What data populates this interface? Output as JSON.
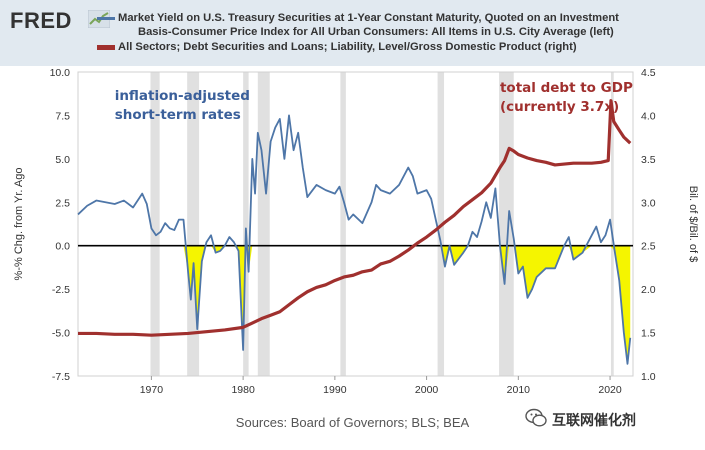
{
  "header": {
    "logo_text": "FRED",
    "series1_line1": "Market Yield on U.S. Treasury Securities at 1-Year Constant Maturity, Quoted on an Investment",
    "series1_line2": "Basis-Consumer Price Index for All Urban Consumers: All Items in U.S. City Average (left)",
    "series2_line1": "All Sectors; Debt Securities and Loans; Liability, Level/Gross Domestic Product (right)"
  },
  "footer": {
    "sources": "Sources: Board of Governors; BLS; BEA",
    "watermark": "互联网催化剂"
  },
  "chart_data": {
    "type": "line",
    "left_axis": {
      "label": "%-% Chg. from Yr. Ago",
      "range": [
        -7.5,
        10.0
      ],
      "ticks": [
        "10.0",
        "7.5",
        "5.0",
        "2.5",
        "0.0",
        "-2.5",
        "-5.0",
        "-7.5"
      ]
    },
    "right_axis": {
      "label": "Bil. of $/Bil. of $",
      "range": [
        1.0,
        4.5
      ],
      "ticks": [
        "4.5",
        "4.0",
        "3.5",
        "3.0",
        "2.5",
        "2.0",
        "1.5",
        "1.0"
      ]
    },
    "x_axis": {
      "range": [
        1962,
        2022.5
      ],
      "ticks": [
        "1970",
        "1980",
        "1990",
        "2000",
        "2010",
        "2020"
      ]
    },
    "recessions": [
      [
        1969.9,
        1970.9
      ],
      [
        1973.9,
        1975.2
      ],
      [
        1980.0,
        1980.6
      ],
      [
        1981.6,
        1982.9
      ],
      [
        1990.6,
        1991.2
      ],
      [
        2001.2,
        2001.9
      ],
      [
        2007.9,
        2009.5
      ],
      [
        2020.1,
        2020.4
      ]
    ],
    "annotations": [
      {
        "text_lines": [
          "inflation-adjusted",
          "short-term rates"
        ],
        "color": "#3a5f9a",
        "x": 1966,
        "y": 8.4
      },
      {
        "text_lines": [
          "total debt to GDP",
          "(currently 3.7x)"
        ],
        "color": "#a0302e",
        "x": 2008,
        "y": 4.27
      }
    ],
    "series": [
      {
        "name": "Market Yield on U.S. Treasury Securities at 1-Year Constant Maturity, Quoted on an Investment Basis-Consumer Price Index for All Urban Consumers: All Items in U.S. City Average (left)",
        "color": "#4e76a8",
        "axis": "left",
        "x": [
          1962,
          1963,
          1964,
          1965,
          1966,
          1967,
          1968,
          1969,
          1969.5,
          1970,
          1970.5,
          1971,
          1971.5,
          1972,
          1972.5,
          1973,
          1973.5,
          1974,
          1974.3,
          1974.6,
          1975,
          1975.5,
          1976,
          1976.5,
          1977,
          1977.5,
          1978,
          1978.5,
          1979,
          1979.5,
          1980,
          1980.3,
          1980.6,
          1981,
          1981.3,
          1981.6,
          1982,
          1982.5,
          1983,
          1983.5,
          1984,
          1984.5,
          1985,
          1985.5,
          1986,
          1986.5,
          1987,
          1988,
          1989,
          1990,
          1990.5,
          1991,
          1991.5,
          1992,
          1993,
          1994,
          1994.5,
          1995,
          1996,
          1997,
          1998,
          1998.5,
          1999,
          2000,
          2000.5,
          2001,
          2001.5,
          2002,
          2002.5,
          2003,
          2004,
          2004.5,
          2005,
          2005.5,
          2006,
          2006.5,
          2007,
          2007.5,
          2008,
          2008.5,
          2009,
          2009.5,
          2010,
          2010.5,
          2011,
          2011.5,
          2012,
          2013,
          2014,
          2015,
          2015.5,
          2016,
          2017,
          2018,
          2018.5,
          2019,
          2019.5,
          2020,
          2020.5,
          2021,
          2021.5,
          2021.9,
          2022.2
        ],
        "y": [
          1.8,
          2.3,
          2.6,
          2.5,
          2.4,
          2.6,
          2.2,
          3.0,
          2.4,
          1.0,
          0.6,
          0.8,
          1.3,
          1.0,
          0.9,
          1.5,
          1.5,
          -1.5,
          -3.1,
          -1.0,
          -4.8,
          -0.9,
          0.2,
          0.6,
          -0.4,
          -0.3,
          0.0,
          0.5,
          0.2,
          -0.3,
          -6.0,
          1.0,
          -1.5,
          5.0,
          3.0,
          6.5,
          5.5,
          3.0,
          6.0,
          6.8,
          7.3,
          5.0,
          7.5,
          5.5,
          6.5,
          4.5,
          2.8,
          3.5,
          3.2,
          3.0,
          3.4,
          2.5,
          1.5,
          1.8,
          1.3,
          2.5,
          3.5,
          3.2,
          3.0,
          3.5,
          4.5,
          4.0,
          3.0,
          3.2,
          2.7,
          1.5,
          0.3,
          -1.2,
          0.0,
          -1.1,
          -0.4,
          0.0,
          0.8,
          0.5,
          1.4,
          2.5,
          1.6,
          3.3,
          0.0,
          -2.2,
          2.0,
          0.4,
          -1.6,
          -1.2,
          -3.0,
          -2.5,
          -1.8,
          -1.3,
          -1.3,
          0.0,
          0.5,
          -0.8,
          -0.4,
          0.6,
          1.1,
          0.2,
          0.6,
          1.5,
          -0.3,
          -2.0,
          -5.0,
          -6.8,
          -5.3
        ]
      },
      {
        "name": "All Sectors; Debt Securities and Loans; Liability, Level/Gross Domestic Product (right)",
        "color": "#a0302e",
        "axis": "right",
        "x": [
          1962,
          1964,
          1966,
          1968,
          1970,
          1972,
          1974,
          1976,
          1978,
          1980,
          1981,
          1982,
          1983,
          1984,
          1985,
          1986,
          1987,
          1988,
          1989,
          1990,
          1991,
          1992,
          1993,
          1994,
          1995,
          1996,
          1997,
          1998,
          1999,
          2000,
          2001,
          2002,
          2003,
          2004,
          2005,
          2006,
          2007,
          2008,
          2008.5,
          2009,
          2009.5,
          2010,
          2011,
          2012,
          2013,
          2014,
          2015,
          2016,
          2017,
          2018,
          2019,
          2019.8,
          2020.1,
          2020.4,
          2021,
          2021.5,
          2022.2
        ],
        "y": [
          1.49,
          1.49,
          1.48,
          1.48,
          1.47,
          1.48,
          1.49,
          1.51,
          1.53,
          1.56,
          1.61,
          1.66,
          1.7,
          1.74,
          1.82,
          1.9,
          1.97,
          2.02,
          2.05,
          2.1,
          2.14,
          2.16,
          2.2,
          2.22,
          2.29,
          2.32,
          2.38,
          2.45,
          2.53,
          2.6,
          2.68,
          2.77,
          2.85,
          2.95,
          3.03,
          3.11,
          3.22,
          3.4,
          3.48,
          3.62,
          3.59,
          3.55,
          3.51,
          3.48,
          3.46,
          3.43,
          3.44,
          3.45,
          3.45,
          3.45,
          3.46,
          3.48,
          4.17,
          3.93,
          3.83,
          3.75,
          3.68
        ]
      }
    ]
  }
}
